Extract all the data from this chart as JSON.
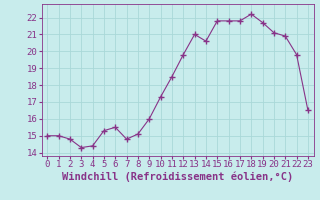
{
  "x": [
    0,
    1,
    2,
    3,
    4,
    5,
    6,
    7,
    8,
    9,
    10,
    11,
    12,
    13,
    14,
    15,
    16,
    17,
    18,
    19,
    20,
    21,
    22,
    23
  ],
  "y": [
    15.0,
    15.0,
    14.8,
    14.3,
    14.4,
    15.3,
    15.5,
    14.8,
    15.1,
    16.0,
    17.3,
    18.5,
    19.8,
    21.0,
    20.6,
    21.8,
    21.8,
    21.8,
    22.2,
    21.7,
    21.1,
    20.9,
    19.8,
    16.5
  ],
  "line_color": "#883388",
  "marker": "+",
  "marker_size": 4,
  "bg_color": "#c8ecec",
  "grid_color": "#aad8d8",
  "xlabel": "Windchill (Refroidissement éolien,°C)",
  "xlim": [
    -0.5,
    23.5
  ],
  "ylim": [
    13.8,
    22.8
  ],
  "yticks": [
    14,
    15,
    16,
    17,
    18,
    19,
    20,
    21,
    22
  ],
  "xlabel_fontsize": 7.5,
  "tick_fontsize": 6.5,
  "tick_color": "#883388",
  "spine_color": "#883388"
}
